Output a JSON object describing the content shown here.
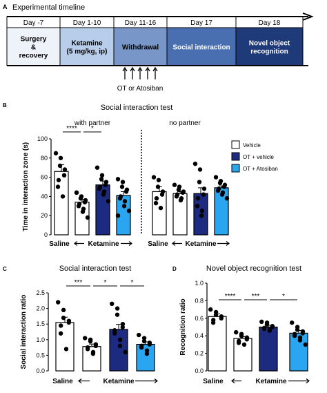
{
  "colors": {
    "vehicle": "#ffffff",
    "ot_vehicle": "#1c2a80",
    "ot_atosiban": "#2aa5f0",
    "ketamine_box": "#b8cdea",
    "withdrawal_box": "#7896c8",
    "social_box": "#4a6fb0",
    "novel_box": "#1f3a78",
    "surgery_box": "#eef2f9",
    "timeline_header": "#ffffff"
  },
  "panel_a": {
    "letter": "A",
    "title": "Experimental timeline",
    "days": [
      "Day -7",
      "Day 1-10",
      "Day 11-16",
      "Day 17",
      "Day 18"
    ],
    "stages": [
      "Surgery\n&\nrecovery",
      "Ketamine\n(5 mg/kg, ip)",
      "Withdrawal",
      "Social interaction",
      "Novel object\nrecognition"
    ],
    "injection_label": "OT or Atosiban"
  },
  "panel_b": {
    "letter": "B",
    "title": "Social interaction test",
    "subtitle_left": "with partner",
    "subtitle_right": "no partner",
    "x_group_left": [
      "Saline",
      "Ketamine"
    ],
    "x_group_right": [
      "Saline",
      "Ketamine"
    ],
    "legend": [
      "Vehicle",
      "OT + vehicle",
      "OT + Atosiban"
    ],
    "sig": [
      "****",
      "*"
    ]
  },
  "panel_c": {
    "letter": "C",
    "title": "Social interaction test",
    "x_labels": [
      "Saline",
      "Ketamine"
    ],
    "sig": [
      "***",
      "*",
      "*"
    ]
  },
  "panel_d": {
    "letter": "D",
    "title": "Novel object recognition test",
    "x_labels": [
      "Saline",
      "Ketamine"
    ],
    "sig": [
      "****",
      "***",
      "*"
    ]
  },
  "chart_data": [
    {
      "type": "bar",
      "title": "Social interaction test",
      "ylabel": "Time in interaction zone (s)",
      "ylim": [
        0,
        100
      ],
      "yticks": [
        0,
        20,
        40,
        60,
        80,
        100
      ],
      "groups": [
        "with partner",
        "no partner"
      ],
      "bars": [
        {
          "group": "with partner",
          "treatment": "Saline",
          "condition": "Vehicle",
          "value": 66,
          "sem": 7,
          "points": [
            85,
            80,
            72,
            68,
            62,
            57,
            50,
            40
          ]
        },
        {
          "group": "with partner",
          "treatment": "Ketamine",
          "condition": "Vehicle",
          "value": 34,
          "sem": 3,
          "points": [
            44,
            40,
            38,
            36,
            34,
            32,
            30,
            27,
            24,
            18,
            44
          ]
        },
        {
          "group": "with partner",
          "treatment": "Ketamine",
          "condition": "OT + vehicle",
          "value": 52,
          "sem": 4,
          "points": [
            70,
            62,
            58,
            55,
            52,
            50,
            48,
            45,
            42,
            35
          ]
        },
        {
          "group": "with partner",
          "treatment": "Ketamine",
          "condition": "OT + Atosiban",
          "value": 41,
          "sem": 4,
          "points": [
            58,
            55,
            50,
            47,
            45,
            40,
            38,
            35,
            30,
            25,
            20
          ]
        },
        {
          "group": "no partner",
          "treatment": "Saline",
          "condition": "Vehicle",
          "value": 45,
          "sem": 5,
          "points": [
            60,
            57,
            50,
            45,
            42,
            38,
            33,
            28
          ]
        },
        {
          "group": "no partner",
          "treatment": "Ketamine",
          "condition": "Vehicle",
          "value": 43,
          "sem": 2,
          "points": [
            52,
            50,
            47,
            45,
            44,
            42,
            40,
            38,
            36
          ]
        },
        {
          "group": "no partner",
          "treatment": "Ketamine",
          "condition": "OT + vehicle",
          "value": 43,
          "sem": 6,
          "points": [
            74,
            68,
            55,
            48,
            42,
            38,
            30,
            25,
            20
          ]
        },
        {
          "group": "no partner",
          "treatment": "Ketamine",
          "condition": "OT + Atosiban",
          "value": 49,
          "sem": 2,
          "points": [
            60,
            56,
            54,
            52,
            50,
            48,
            46,
            44,
            42,
            38
          ]
        }
      ],
      "significance": [
        {
          "from": 0,
          "to": 1,
          "label": "****"
        },
        {
          "from": 1,
          "to": 2,
          "label": "*"
        }
      ],
      "legend": [
        "Vehicle",
        "OT + vehicle",
        "OT + Atosiban"
      ],
      "legend_position": "right"
    },
    {
      "type": "bar",
      "title": "Social interaction test",
      "ylabel": "Social interaction ratio",
      "ylim": [
        0,
        2.5
      ],
      "yticks": [
        0.0,
        0.5,
        1.0,
        1.5,
        2.0,
        2.5
      ],
      "bars": [
        {
          "treatment": "Saline",
          "condition": "Vehicle",
          "value": 1.55,
          "sem": 0.17,
          "points": [
            2.2,
            1.95,
            1.7,
            1.6,
            1.55,
            1.45,
            1.2,
            0.7
          ]
        },
        {
          "treatment": "Ketamine",
          "condition": "Vehicle",
          "value": 0.78,
          "sem": 0.08,
          "points": [
            1.05,
            1.0,
            0.95,
            0.85,
            0.8,
            0.75,
            0.7,
            0.6,
            0.55
          ]
        },
        {
          "treatment": "Ketamine",
          "condition": "OT + vehicle",
          "value": 1.33,
          "sem": 0.16,
          "points": [
            2.15,
            2.0,
            1.8,
            1.5,
            1.4,
            1.3,
            1.2,
            1.0,
            0.8,
            0.6
          ]
        },
        {
          "treatment": "Ketamine",
          "condition": "OT + Atosiban",
          "value": 0.85,
          "sem": 0.08,
          "points": [
            1.15,
            1.05,
            0.95,
            0.9,
            0.85,
            0.8,
            0.75,
            0.65,
            0.55
          ]
        }
      ],
      "significance": [
        {
          "from": 0,
          "to": 1,
          "label": "***"
        },
        {
          "from": 1,
          "to": 2,
          "label": "*"
        },
        {
          "from": 2,
          "to": 3,
          "label": "*"
        }
      ]
    },
    {
      "type": "bar",
      "title": "Novel object recognition test",
      "ylabel": "Recognition ratio",
      "ylim": [
        0,
        1.0
      ],
      "yticks": [
        0.0,
        0.2,
        0.4,
        0.6,
        0.8,
        1.0
      ],
      "bars": [
        {
          "treatment": "Saline",
          "condition": "Vehicle",
          "value": 0.62,
          "sem": 0.03,
          "points": [
            0.7,
            0.67,
            0.64,
            0.62,
            0.6,
            0.58,
            0.55
          ]
        },
        {
          "treatment": "Ketamine",
          "condition": "Vehicle",
          "value": 0.37,
          "sem": 0.02,
          "points": [
            0.44,
            0.42,
            0.4,
            0.38,
            0.36,
            0.34,
            0.32,
            0.3
          ]
        },
        {
          "treatment": "Ketamine",
          "condition": "OT + vehicle",
          "value": 0.5,
          "sem": 0.02,
          "points": [
            0.56,
            0.55,
            0.53,
            0.51,
            0.5,
            0.49,
            0.48,
            0.47,
            0.46
          ]
        },
        {
          "treatment": "Ketamine",
          "condition": "OT + Atosiban",
          "value": 0.43,
          "sem": 0.03,
          "points": [
            0.55,
            0.5,
            0.47,
            0.45,
            0.43,
            0.42,
            0.4,
            0.38,
            0.35,
            0.3
          ]
        }
      ],
      "significance": [
        {
          "from": 0,
          "to": 1,
          "label": "****"
        },
        {
          "from": 1,
          "to": 2,
          "label": "***"
        },
        {
          "from": 2,
          "to": 3,
          "label": "*"
        }
      ]
    }
  ]
}
